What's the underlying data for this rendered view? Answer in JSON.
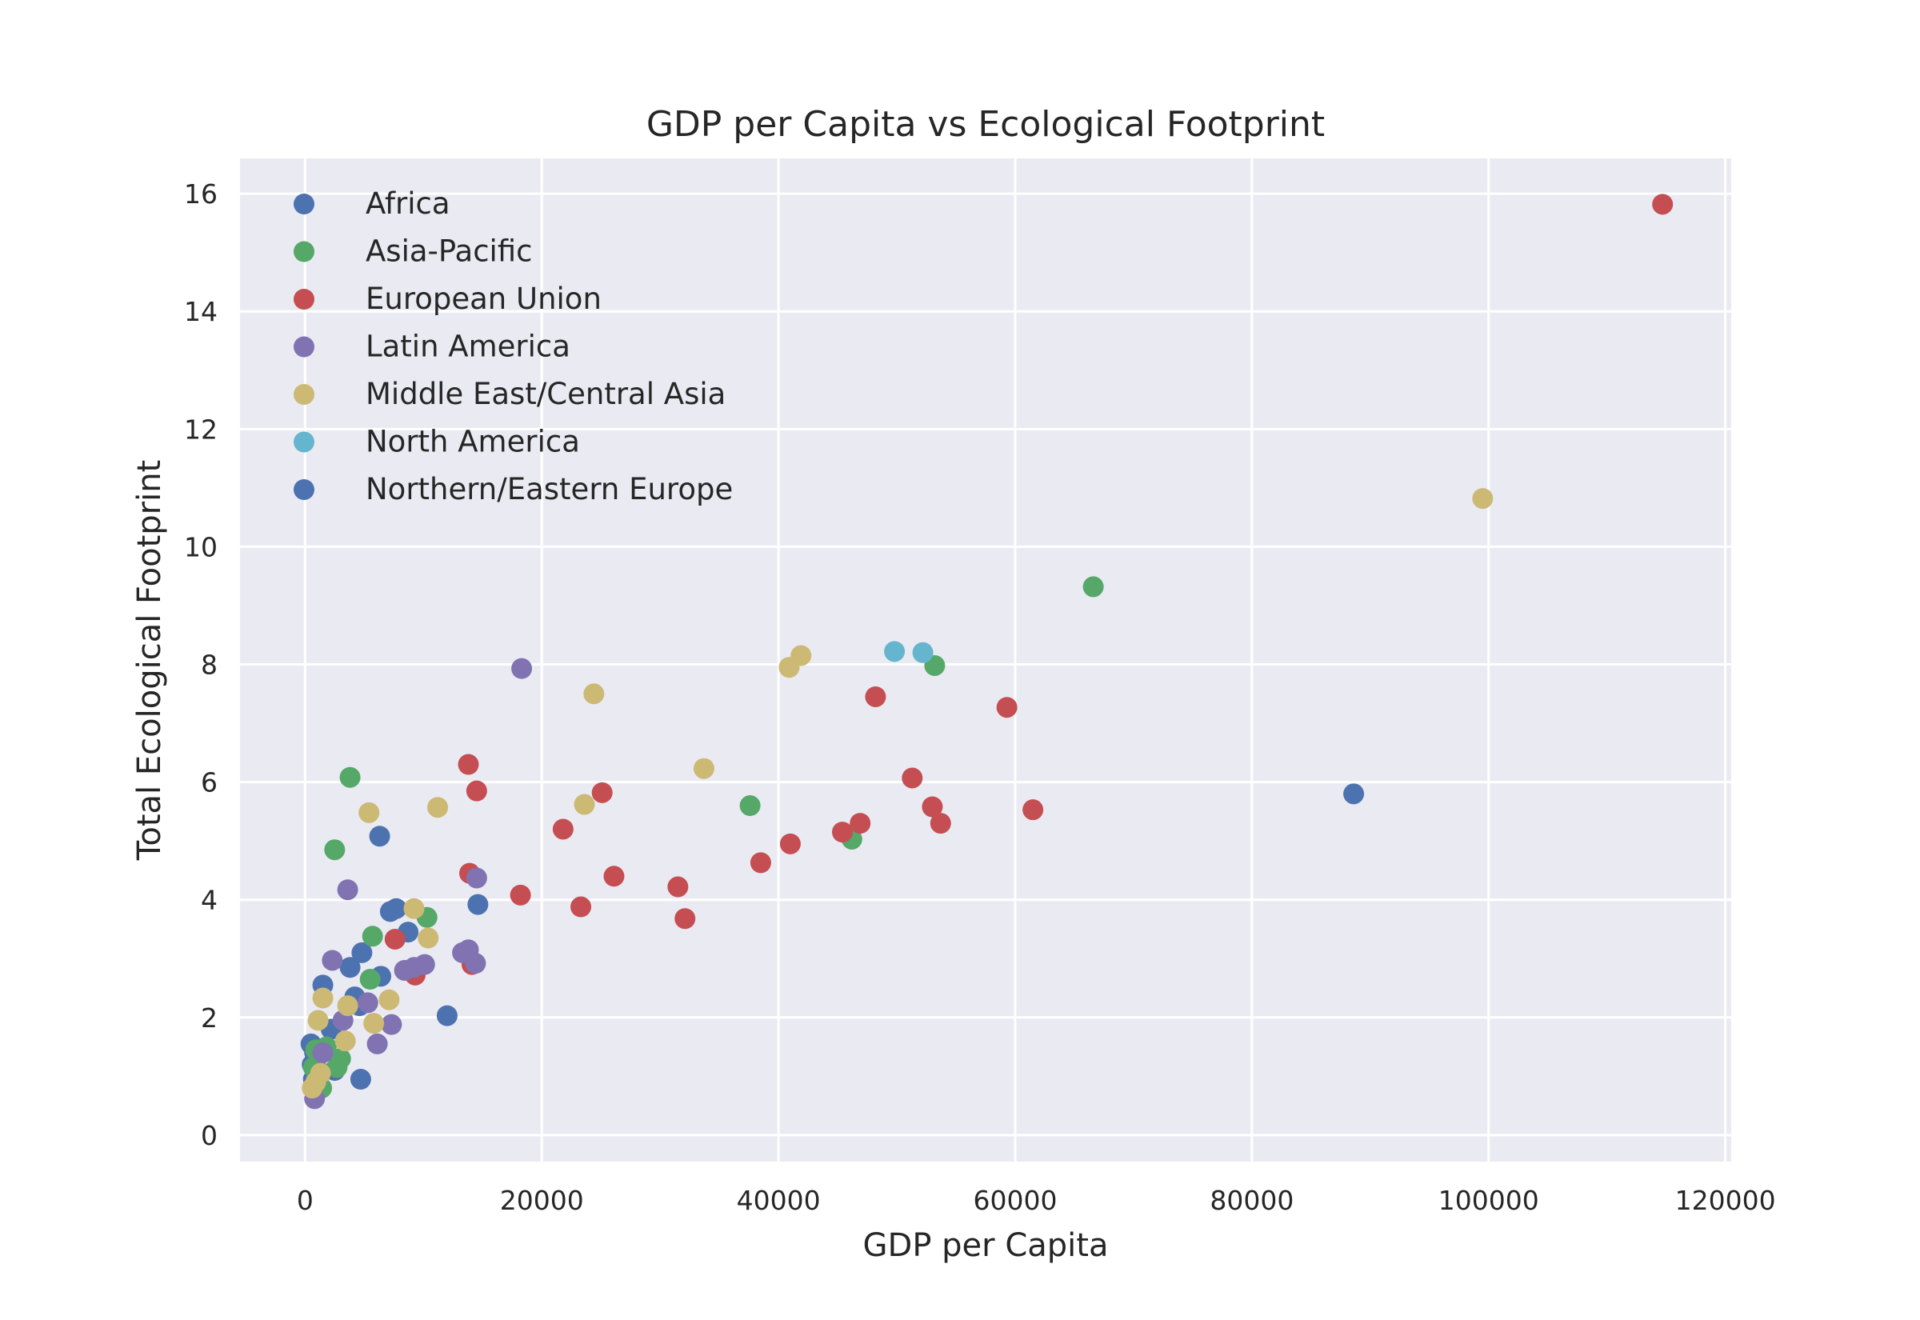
{
  "chart_data": {
    "type": "scatter",
    "title": "GDP per Capita vs Ecological Footprint",
    "xlabel": "GDP per Capita",
    "ylabel": "Total Ecological Footprint",
    "xlim": [
      -5500,
      120500
    ],
    "ylim": [
      -0.45,
      16.6
    ],
    "xticks": [
      0,
      20000,
      40000,
      60000,
      80000,
      100000,
      120000
    ],
    "yticks": [
      0,
      2,
      4,
      6,
      8,
      10,
      12,
      14,
      16
    ],
    "grid": true,
    "legend_position": "upper-left",
    "series": [
      {
        "name": "Africa",
        "color": "#4c72b0",
        "points": [
          [
            500,
            1.55
          ],
          [
            600,
            1.2
          ],
          [
            700,
            0.95
          ],
          [
            800,
            1.4
          ],
          [
            1000,
            1.0
          ],
          [
            1500,
            2.55
          ],
          [
            2200,
            1.8
          ],
          [
            2500,
            1.1
          ],
          [
            3800,
            2.85
          ],
          [
            4200,
            2.35
          ],
          [
            4600,
            2.2
          ],
          [
            4700,
            0.95
          ],
          [
            4800,
            3.1
          ],
          [
            6300,
            5.08
          ],
          [
            6400,
            2.7
          ],
          [
            7200,
            3.8
          ],
          [
            7700,
            3.85
          ],
          [
            8700,
            3.45
          ],
          [
            12000,
            2.03
          ],
          [
            14600,
            3.92
          ]
        ]
      },
      {
        "name": "Asia-Pacific",
        "color": "#55a868",
        "points": [
          [
            700,
            1.15
          ],
          [
            900,
            1.45
          ],
          [
            1100,
            1.1
          ],
          [
            1400,
            0.8
          ],
          [
            1800,
            1.5
          ],
          [
            2500,
            4.85
          ],
          [
            2700,
            1.15
          ],
          [
            3000,
            1.3
          ],
          [
            3800,
            6.08
          ],
          [
            5500,
            2.65
          ],
          [
            5700,
            3.38
          ],
          [
            10300,
            3.7
          ],
          [
            37600,
            5.6
          ],
          [
            46200,
            5.03
          ],
          [
            53200,
            7.98
          ],
          [
            66600,
            9.32
          ]
        ]
      },
      {
        "name": "European Union",
        "color": "#c44e52",
        "points": [
          [
            7600,
            3.33
          ],
          [
            9300,
            2.72
          ],
          [
            13800,
            6.3
          ],
          [
            13900,
            4.45
          ],
          [
            14100,
            2.9
          ],
          [
            14500,
            5.85
          ],
          [
            18200,
            4.08
          ],
          [
            21800,
            5.2
          ],
          [
            23300,
            3.88
          ],
          [
            25100,
            5.82
          ],
          [
            26100,
            4.4
          ],
          [
            31500,
            4.22
          ],
          [
            32100,
            3.68
          ],
          [
            38500,
            4.63
          ],
          [
            41000,
            4.95
          ],
          [
            45400,
            5.15
          ],
          [
            46900,
            5.3
          ],
          [
            48200,
            7.45
          ],
          [
            51300,
            6.07
          ],
          [
            53000,
            5.58
          ],
          [
            53700,
            5.3
          ],
          [
            59300,
            7.27
          ],
          [
            61500,
            5.53
          ],
          [
            114700,
            15.82
          ]
        ]
      },
      {
        "name": "Latin America",
        "color": "#8172b2",
        "points": [
          [
            800,
            0.62
          ],
          [
            1500,
            1.4
          ],
          [
            2300,
            2.97
          ],
          [
            3200,
            1.95
          ],
          [
            3600,
            4.17
          ],
          [
            5300,
            2.25
          ],
          [
            6100,
            1.55
          ],
          [
            7300,
            1.88
          ],
          [
            8400,
            2.8
          ],
          [
            9200,
            2.85
          ],
          [
            10100,
            2.9
          ],
          [
            13300,
            3.1
          ],
          [
            13800,
            3.15
          ],
          [
            14400,
            2.92
          ],
          [
            14500,
            4.37
          ],
          [
            18300,
            7.93
          ]
        ]
      },
      {
        "name": "Middle East/Central Asia",
        "color": "#ccb974",
        "points": [
          [
            600,
            0.8
          ],
          [
            900,
            0.9
          ],
          [
            1100,
            1.95
          ],
          [
            1300,
            1.05
          ],
          [
            1500,
            2.33
          ],
          [
            3400,
            1.6
          ],
          [
            3600,
            2.2
          ],
          [
            5400,
            5.48
          ],
          [
            5800,
            1.9
          ],
          [
            7100,
            2.3
          ],
          [
            9200,
            3.85
          ],
          [
            10400,
            3.35
          ],
          [
            11200,
            5.57
          ],
          [
            23600,
            5.62
          ],
          [
            24400,
            7.5
          ],
          [
            33700,
            6.23
          ],
          [
            40900,
            7.95
          ],
          [
            41900,
            8.15
          ],
          [
            99500,
            10.82
          ]
        ]
      },
      {
        "name": "North America",
        "color": "#64b5cd",
        "points": [
          [
            49800,
            8.22
          ],
          [
            52200,
            8.2
          ]
        ]
      },
      {
        "name": "Northern/Eastern Europe",
        "color": "#4c72b0",
        "points": [
          [
            88600,
            5.8
          ]
        ]
      }
    ]
  }
}
